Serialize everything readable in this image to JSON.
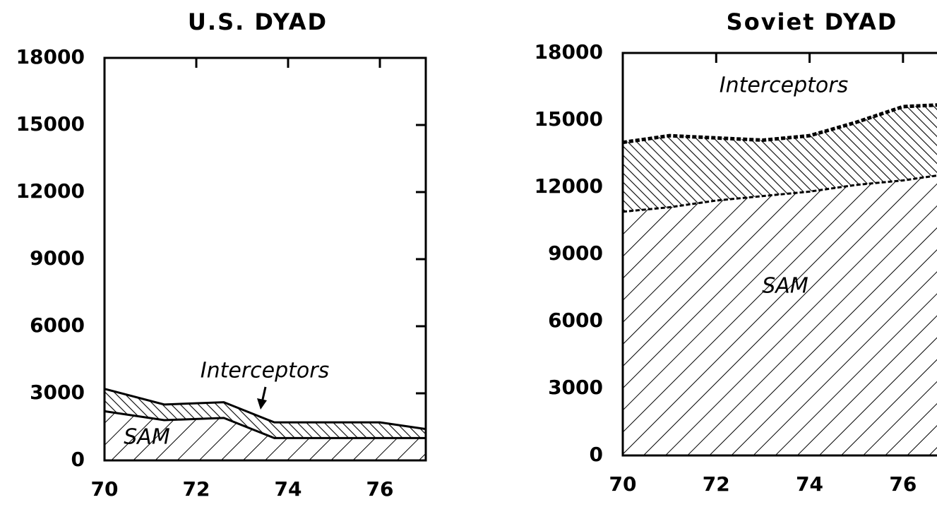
{
  "chart_data": [
    {
      "type": "area",
      "title": "U.S. DYAD",
      "x": [
        70,
        71.3,
        72.6,
        73.7,
        76,
        77
      ],
      "series": [
        {
          "name": "SAM",
          "color": "#000000",
          "values": [
            2200,
            1800,
            1900,
            1000,
            1000,
            1000
          ]
        },
        {
          "name": "Interceptors",
          "color": "#000000",
          "values": [
            1000,
            700,
            700,
            700,
            700,
            400
          ]
        }
      ],
      "xlim": [
        70,
        77
      ],
      "xticks": [
        70,
        72,
        74,
        76
      ],
      "ylim": [
        0,
        18000
      ],
      "yticks": [
        0,
        3000,
        6000,
        9000,
        12000,
        15000,
        18000
      ]
    },
    {
      "type": "area",
      "title": "Soviet DYAD",
      "x": [
        70,
        71,
        72,
        73,
        74,
        75,
        76,
        77
      ],
      "series": [
        {
          "name": "SAM",
          "color": "#000000",
          "values": [
            10900,
            11100,
            11400,
            11600,
            11800,
            12100,
            12300,
            12600
          ]
        },
        {
          "name": "Interceptors",
          "color": "#000000",
          "values": [
            3100,
            3200,
            2800,
            2500,
            2500,
            2800,
            3300,
            3100
          ]
        }
      ],
      "xlim": [
        70,
        77
      ],
      "xticks": [
        70,
        72,
        74,
        76
      ],
      "ylim": [
        0,
        18000
      ],
      "yticks": [
        0,
        3000,
        6000,
        9000,
        12000,
        15000,
        18000
      ]
    }
  ]
}
